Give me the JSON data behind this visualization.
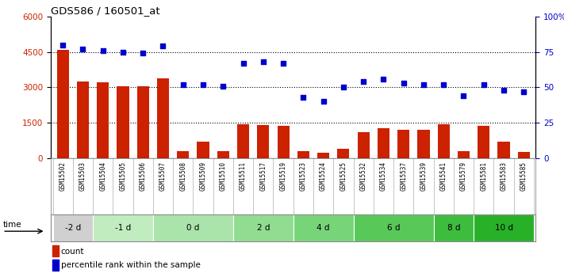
{
  "title": "GDS586 / 160501_at",
  "samples": [
    "GSM15502",
    "GSM15503",
    "GSM15504",
    "GSM15505",
    "GSM15506",
    "GSM15507",
    "GSM15508",
    "GSM15509",
    "GSM15510",
    "GSM15511",
    "GSM15517",
    "GSM15519",
    "GSM15523",
    "GSM15524",
    "GSM15525",
    "GSM15532",
    "GSM15534",
    "GSM15537",
    "GSM15539",
    "GSM15541",
    "GSM15579",
    "GSM15581",
    "GSM15583",
    "GSM15585"
  ],
  "counts": [
    4600,
    3250,
    3200,
    3060,
    3060,
    3380,
    300,
    700,
    300,
    1450,
    1420,
    1380,
    300,
    230,
    420,
    1120,
    1280,
    1220,
    1210,
    1430,
    300,
    1390,
    700,
    280
  ],
  "percentiles": [
    80,
    77,
    76,
    75,
    74,
    79,
    52,
    52,
    51,
    67,
    68,
    67,
    43,
    40,
    50,
    54,
    56,
    53,
    52,
    52,
    44,
    52,
    48,
    47
  ],
  "groups": [
    {
      "label": "-2 d",
      "start": 0,
      "end": 1,
      "color": "#d0d0d0"
    },
    {
      "label": "-1 d",
      "start": 2,
      "end": 4,
      "color": "#c0ecc0"
    },
    {
      "label": "0 d",
      "start": 5,
      "end": 8,
      "color": "#aae4aa"
    },
    {
      "label": "2 d",
      "start": 9,
      "end": 11,
      "color": "#90dc90"
    },
    {
      "label": "4 d",
      "start": 12,
      "end": 14,
      "color": "#78d478"
    },
    {
      "label": "6 d",
      "start": 15,
      "end": 18,
      "color": "#58c858"
    },
    {
      "label": "8 d",
      "start": 19,
      "end": 20,
      "color": "#3ebc3e"
    },
    {
      "label": "10 d",
      "start": 21,
      "end": 23,
      "color": "#28b028"
    }
  ],
  "bar_color": "#cc2200",
  "dot_color": "#0000cc",
  "ylim_left": [
    0,
    6000
  ],
  "ylim_right": [
    0,
    100
  ],
  "yticks_left": [
    0,
    1500,
    3000,
    4500,
    6000
  ],
  "yticks_right": [
    0,
    25,
    50,
    75,
    100
  ],
  "grid_values": [
    1500,
    3000,
    4500
  ],
  "time_label": "time",
  "legend_count": "count",
  "legend_pct": "percentile rank within the sample"
}
